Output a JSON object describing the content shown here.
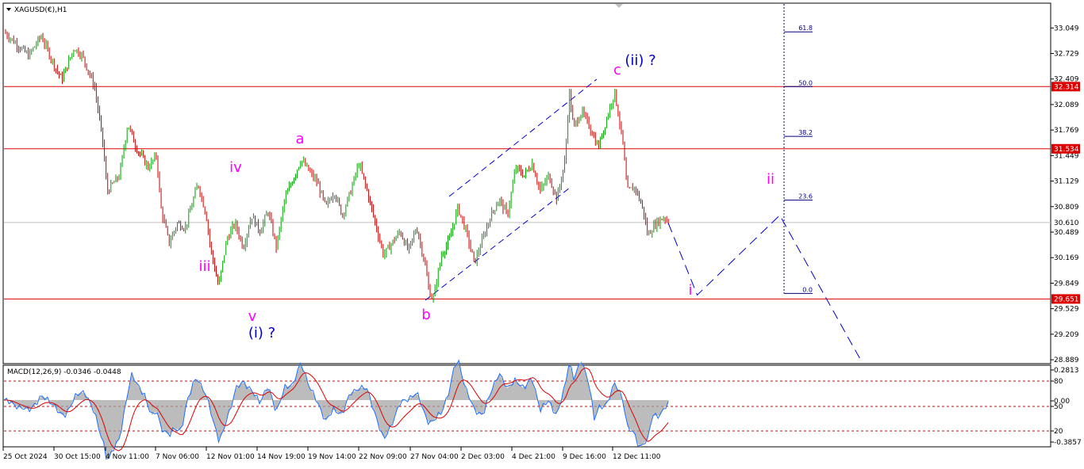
{
  "header": {
    "symbol_label": "XAGUSD(€),H1",
    "indicator_label": "MACD(12,26,9) -0.0346 -0.0448"
  },
  "colors": {
    "candle_up": "#00a000",
    "candle_down": "#cc0000",
    "level_line": "#dd0000",
    "current_line": "#c0c0c0",
    "projection": "#0000cc",
    "wave_pink": "#ff00ff",
    "wave_blue": "#0000cc",
    "fib": "#000080",
    "macd_hist": "#a0a0a0",
    "macd_signal": "#dd0000",
    "macd_line": "#1e6fff"
  },
  "icons": [
    "dropdown-triangle-icon",
    "scroll-marker-icon"
  ],
  "chart_data": [
    {
      "type": "candlestick",
      "title": "XAGUSD(€),H1",
      "ylim": [
        28.85,
        33.35
      ],
      "price_axis_ticks": [
        "33.049",
        "32.729",
        "32.409",
        "32.089",
        "31.769",
        "31.449",
        "31.129",
        "30.809",
        "30.489",
        "30.169",
        "29.849",
        "29.529",
        "29.209",
        "28.889"
      ],
      "time_axis_ticks": [
        "25 Oct 2024",
        "30 Oct 15:00",
        "4 Nov 11:00",
        "7 Nov 06:00",
        "12 Nov 01:00",
        "14 Nov 19:00",
        "19 Nov 14:00",
        "22 Nov 09:00",
        "27 Nov 04:00",
        "2 Dec 03:00",
        "4 Dec 21:00",
        "9 Dec 16:00",
        "12 Dec 11:00"
      ],
      "horizontal_levels": [
        {
          "value": 32.314,
          "label": "32.314"
        },
        {
          "value": 31.534,
          "label": "31.534"
        },
        {
          "value": 29.651,
          "label": "29.651"
        }
      ],
      "current_price": {
        "value": 30.61,
        "label": "30.610"
      },
      "price_path": [
        {
          "t": 0.0,
          "p": 33.0
        },
        {
          "t": 0.01,
          "p": 32.9
        },
        {
          "t": 0.03,
          "p": 32.7
        },
        {
          "t": 0.045,
          "p": 32.95
        },
        {
          "t": 0.06,
          "p": 32.6
        },
        {
          "t": 0.07,
          "p": 32.4
        },
        {
          "t": 0.085,
          "p": 32.8
        },
        {
          "t": 0.095,
          "p": 32.7
        },
        {
          "t": 0.11,
          "p": 32.3
        },
        {
          "t": 0.12,
          "p": 31.6
        },
        {
          "t": 0.125,
          "p": 31.0
        },
        {
          "t": 0.14,
          "p": 31.2
        },
        {
          "t": 0.15,
          "p": 31.85
        },
        {
          "t": 0.16,
          "p": 31.55
        },
        {
          "t": 0.175,
          "p": 31.3
        },
        {
          "t": 0.185,
          "p": 31.45
        },
        {
          "t": 0.19,
          "p": 30.8
        },
        {
          "t": 0.2,
          "p": 30.35
        },
        {
          "t": 0.21,
          "p": 30.6
        },
        {
          "t": 0.22,
          "p": 30.55
        },
        {
          "t": 0.235,
          "p": 31.1
        },
        {
          "t": 0.245,
          "p": 30.7
        },
        {
          "t": 0.25,
          "p": 30.3
        },
        {
          "t": 0.26,
          "p": 29.8
        },
        {
          "t": 0.27,
          "p": 30.4
        },
        {
          "t": 0.28,
          "p": 30.6
        },
        {
          "t": 0.29,
          "p": 30.3
        },
        {
          "t": 0.3,
          "p": 30.7
        },
        {
          "t": 0.31,
          "p": 30.5
        },
        {
          "t": 0.32,
          "p": 30.75
        },
        {
          "t": 0.33,
          "p": 30.3
        },
        {
          "t": 0.34,
          "p": 30.9
        },
        {
          "t": 0.35,
          "p": 31.15
        },
        {
          "t": 0.36,
          "p": 31.4
        },
        {
          "t": 0.37,
          "p": 31.25
        },
        {
          "t": 0.38,
          "p": 31.1
        },
        {
          "t": 0.39,
          "p": 30.8
        },
        {
          "t": 0.4,
          "p": 31.0
        },
        {
          "t": 0.41,
          "p": 30.7
        },
        {
          "t": 0.42,
          "p": 31.0
        },
        {
          "t": 0.43,
          "p": 31.35
        },
        {
          "t": 0.44,
          "p": 31.0
        },
        {
          "t": 0.45,
          "p": 30.6
        },
        {
          "t": 0.46,
          "p": 30.2
        },
        {
          "t": 0.47,
          "p": 30.35
        },
        {
          "t": 0.48,
          "p": 30.5
        },
        {
          "t": 0.49,
          "p": 30.25
        },
        {
          "t": 0.5,
          "p": 30.55
        },
        {
          "t": 0.51,
          "p": 30.1
        },
        {
          "t": 0.515,
          "p": 29.75
        },
        {
          "t": 0.52,
          "p": 29.65
        },
        {
          "t": 0.53,
          "p": 30.2
        },
        {
          "t": 0.54,
          "p": 30.4
        },
        {
          "t": 0.55,
          "p": 30.8
        },
        {
          "t": 0.56,
          "p": 30.5
        },
        {
          "t": 0.57,
          "p": 30.1
        },
        {
          "t": 0.58,
          "p": 30.4
        },
        {
          "t": 0.59,
          "p": 30.7
        },
        {
          "t": 0.6,
          "p": 30.9
        },
        {
          "t": 0.61,
          "p": 30.7
        },
        {
          "t": 0.62,
          "p": 31.3
        },
        {
          "t": 0.63,
          "p": 31.2
        },
        {
          "t": 0.64,
          "p": 31.35
        },
        {
          "t": 0.65,
          "p": 31.0
        },
        {
          "t": 0.66,
          "p": 31.2
        },
        {
          "t": 0.67,
          "p": 30.9
        },
        {
          "t": 0.68,
          "p": 31.4
        },
        {
          "t": 0.685,
          "p": 32.25
        },
        {
          "t": 0.69,
          "p": 31.8
        },
        {
          "t": 0.7,
          "p": 32.0
        },
        {
          "t": 0.71,
          "p": 31.8
        },
        {
          "t": 0.72,
          "p": 31.55
        },
        {
          "t": 0.73,
          "p": 31.9
        },
        {
          "t": 0.74,
          "p": 32.25
        },
        {
          "t": 0.75,
          "p": 31.6
        },
        {
          "t": 0.755,
          "p": 31.0
        },
        {
          "t": 0.765,
          "p": 31.05
        },
        {
          "t": 0.775,
          "p": 30.75
        },
        {
          "t": 0.78,
          "p": 30.45
        },
        {
          "t": 0.79,
          "p": 30.6
        },
        {
          "t": 0.8,
          "p": 30.68
        },
        {
          "t": 0.805,
          "p": 30.62
        }
      ],
      "fib_levels": [
        {
          "ratio": "61.8"
        },
        {
          "ratio": "50.0"
        },
        {
          "ratio": "38.2"
        },
        {
          "ratio": "23.6"
        },
        {
          "ratio": "0.0"
        }
      ],
      "wave_labels": [
        {
          "text": "v",
          "color": "pink"
        },
        {
          "text": "(i) ?",
          "color": "blue"
        },
        {
          "text": "iii",
          "color": "pink"
        },
        {
          "text": "iv",
          "color": "pink"
        },
        {
          "text": "a",
          "color": "pink"
        },
        {
          "text": "b",
          "color": "pink"
        },
        {
          "text": "c",
          "color": "pink"
        },
        {
          "text": "(ii) ?",
          "color": "blue"
        },
        {
          "text": "i",
          "color": "pink"
        },
        {
          "text": "ii",
          "color": "pink"
        }
      ],
      "projection_path": [
        {
          "t": 0.805,
          "p": 30.6
        },
        {
          "t": 0.84,
          "p": 29.7
        },
        {
          "t": 0.94,
          "p": 30.7
        },
        {
          "t": 1.04,
          "p": 28.85
        }
      ]
    },
    {
      "type": "macd",
      "title": "MACD(12,26,9) -0.0346 -0.0448",
      "axis_ticks": [
        "0.2813",
        "80",
        "50",
        "0.00",
        "20",
        "-0.3857"
      ],
      "dashed_levels": [
        80,
        50,
        20
      ]
    }
  ]
}
